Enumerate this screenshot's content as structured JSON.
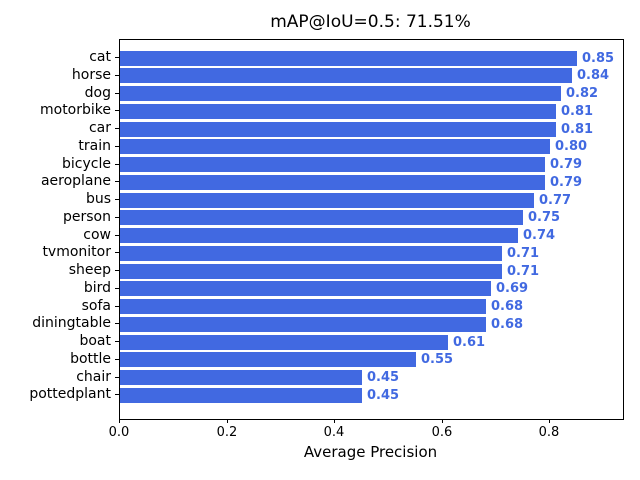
{
  "figure": {
    "background": "#ffffff"
  },
  "chart_data": {
    "type": "bar",
    "orientation": "horizontal",
    "title": "mAP@IoU=0.5: 71.51%",
    "xlabel": "Average Precision",
    "ylabel": "",
    "categories": [
      "cat",
      "horse",
      "dog",
      "motorbike",
      "car",
      "train",
      "bicycle",
      "aeroplane",
      "bus",
      "person",
      "cow",
      "tvmonitor",
      "sheep",
      "bird",
      "sofa",
      "diningtable",
      "boat",
      "bottle",
      "chair",
      "pottedplant"
    ],
    "values": [
      0.85,
      0.84,
      0.82,
      0.81,
      0.81,
      0.8,
      0.79,
      0.79,
      0.77,
      0.75,
      0.74,
      0.71,
      0.71,
      0.69,
      0.68,
      0.68,
      0.61,
      0.55,
      0.45,
      0.45
    ],
    "value_labels": [
      "0.85",
      "0.84",
      "0.82",
      "0.81",
      "0.81",
      "0.80",
      "0.79",
      "0.79",
      "0.77",
      "0.75",
      "0.74",
      "0.71",
      "0.71",
      "0.69",
      "0.68",
      "0.68",
      "0.61",
      "0.55",
      "0.45",
      "0.45"
    ],
    "xticks": [
      0.0,
      0.2,
      0.4,
      0.6,
      0.8
    ],
    "xtick_labels": [
      "0.0",
      "0.2",
      "0.4",
      "0.6",
      "0.8"
    ],
    "xlim": [
      0,
      0.935
    ],
    "bar_color": "#4169e1",
    "value_label_color": "#4169e1",
    "spine_color": "#000000",
    "grid": false,
    "legend": null
  }
}
